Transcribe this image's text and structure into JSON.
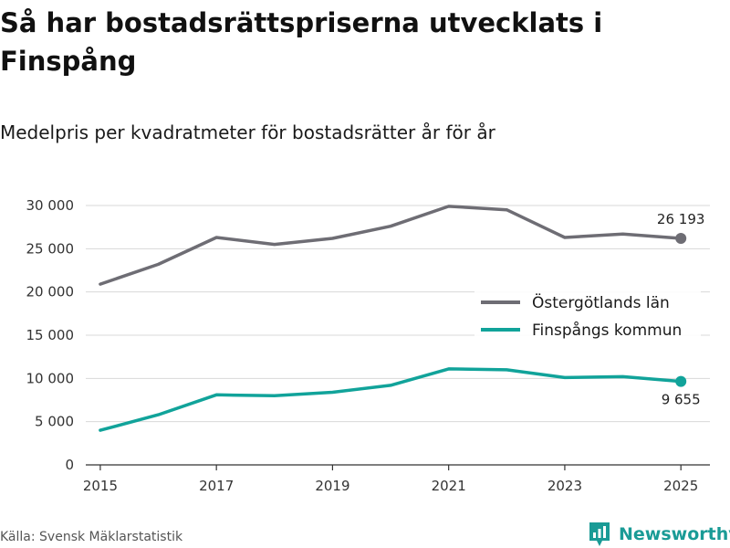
{
  "header": {
    "title": "Så har bostadsrättspriserna utvecklats i Finspång",
    "subtitle": "Medelpris per kvadratmeter för bostadsrätter år för år"
  },
  "footer": {
    "source": "Källa: Svensk Mäklarstatistik",
    "brand": "Newsworthy",
    "logo_icon": "bar-chart-pin-icon"
  },
  "colors": {
    "ostergotland": "#6e6d74",
    "finspang": "#11a39a",
    "grid": "#d8d8d8",
    "axis": "#333333",
    "brand": "#1a9b96"
  },
  "chart_data": {
    "type": "line",
    "title": "Så har bostadsrättspriserna utvecklats i Finspång",
    "subtitle": "Medelpris per kvadratmeter för bostadsrätter år för år",
    "xlabel": "",
    "ylabel": "",
    "x": [
      2015,
      2016,
      2017,
      2018,
      2019,
      2020,
      2021,
      2022,
      2023,
      2024,
      2025
    ],
    "xticks": [
      2015,
      2017,
      2019,
      2021,
      2023,
      2025
    ],
    "xtick_labels": [
      "2015",
      "2017",
      "2019",
      "2021",
      "2023",
      "2025"
    ],
    "xlim": [
      2014.75,
      2025.5
    ],
    "ylim": [
      0,
      30000
    ],
    "yticks": [
      0,
      5000,
      10000,
      15000,
      20000,
      25000,
      30000
    ],
    "ytick_labels": [
      "0",
      "5 000",
      "10 000",
      "15 000",
      "20 000",
      "25 000",
      "30 000"
    ],
    "grid": true,
    "legend_position": "right",
    "series": [
      {
        "name": "Östergötlands län",
        "color": "#6e6d74",
        "values": [
          20900,
          23200,
          26300,
          25500,
          26200,
          27600,
          29900,
          29500,
          26300,
          26700,
          26193
        ],
        "end_label": "26 193",
        "end_label_position": "above"
      },
      {
        "name": "Finspångs kommun",
        "color": "#11a39a",
        "values": [
          4000,
          5800,
          8100,
          8000,
          8400,
          9200,
          11100,
          11000,
          10100,
          10200,
          9655
        ],
        "end_label": "9 655",
        "end_label_position": "below"
      }
    ]
  }
}
